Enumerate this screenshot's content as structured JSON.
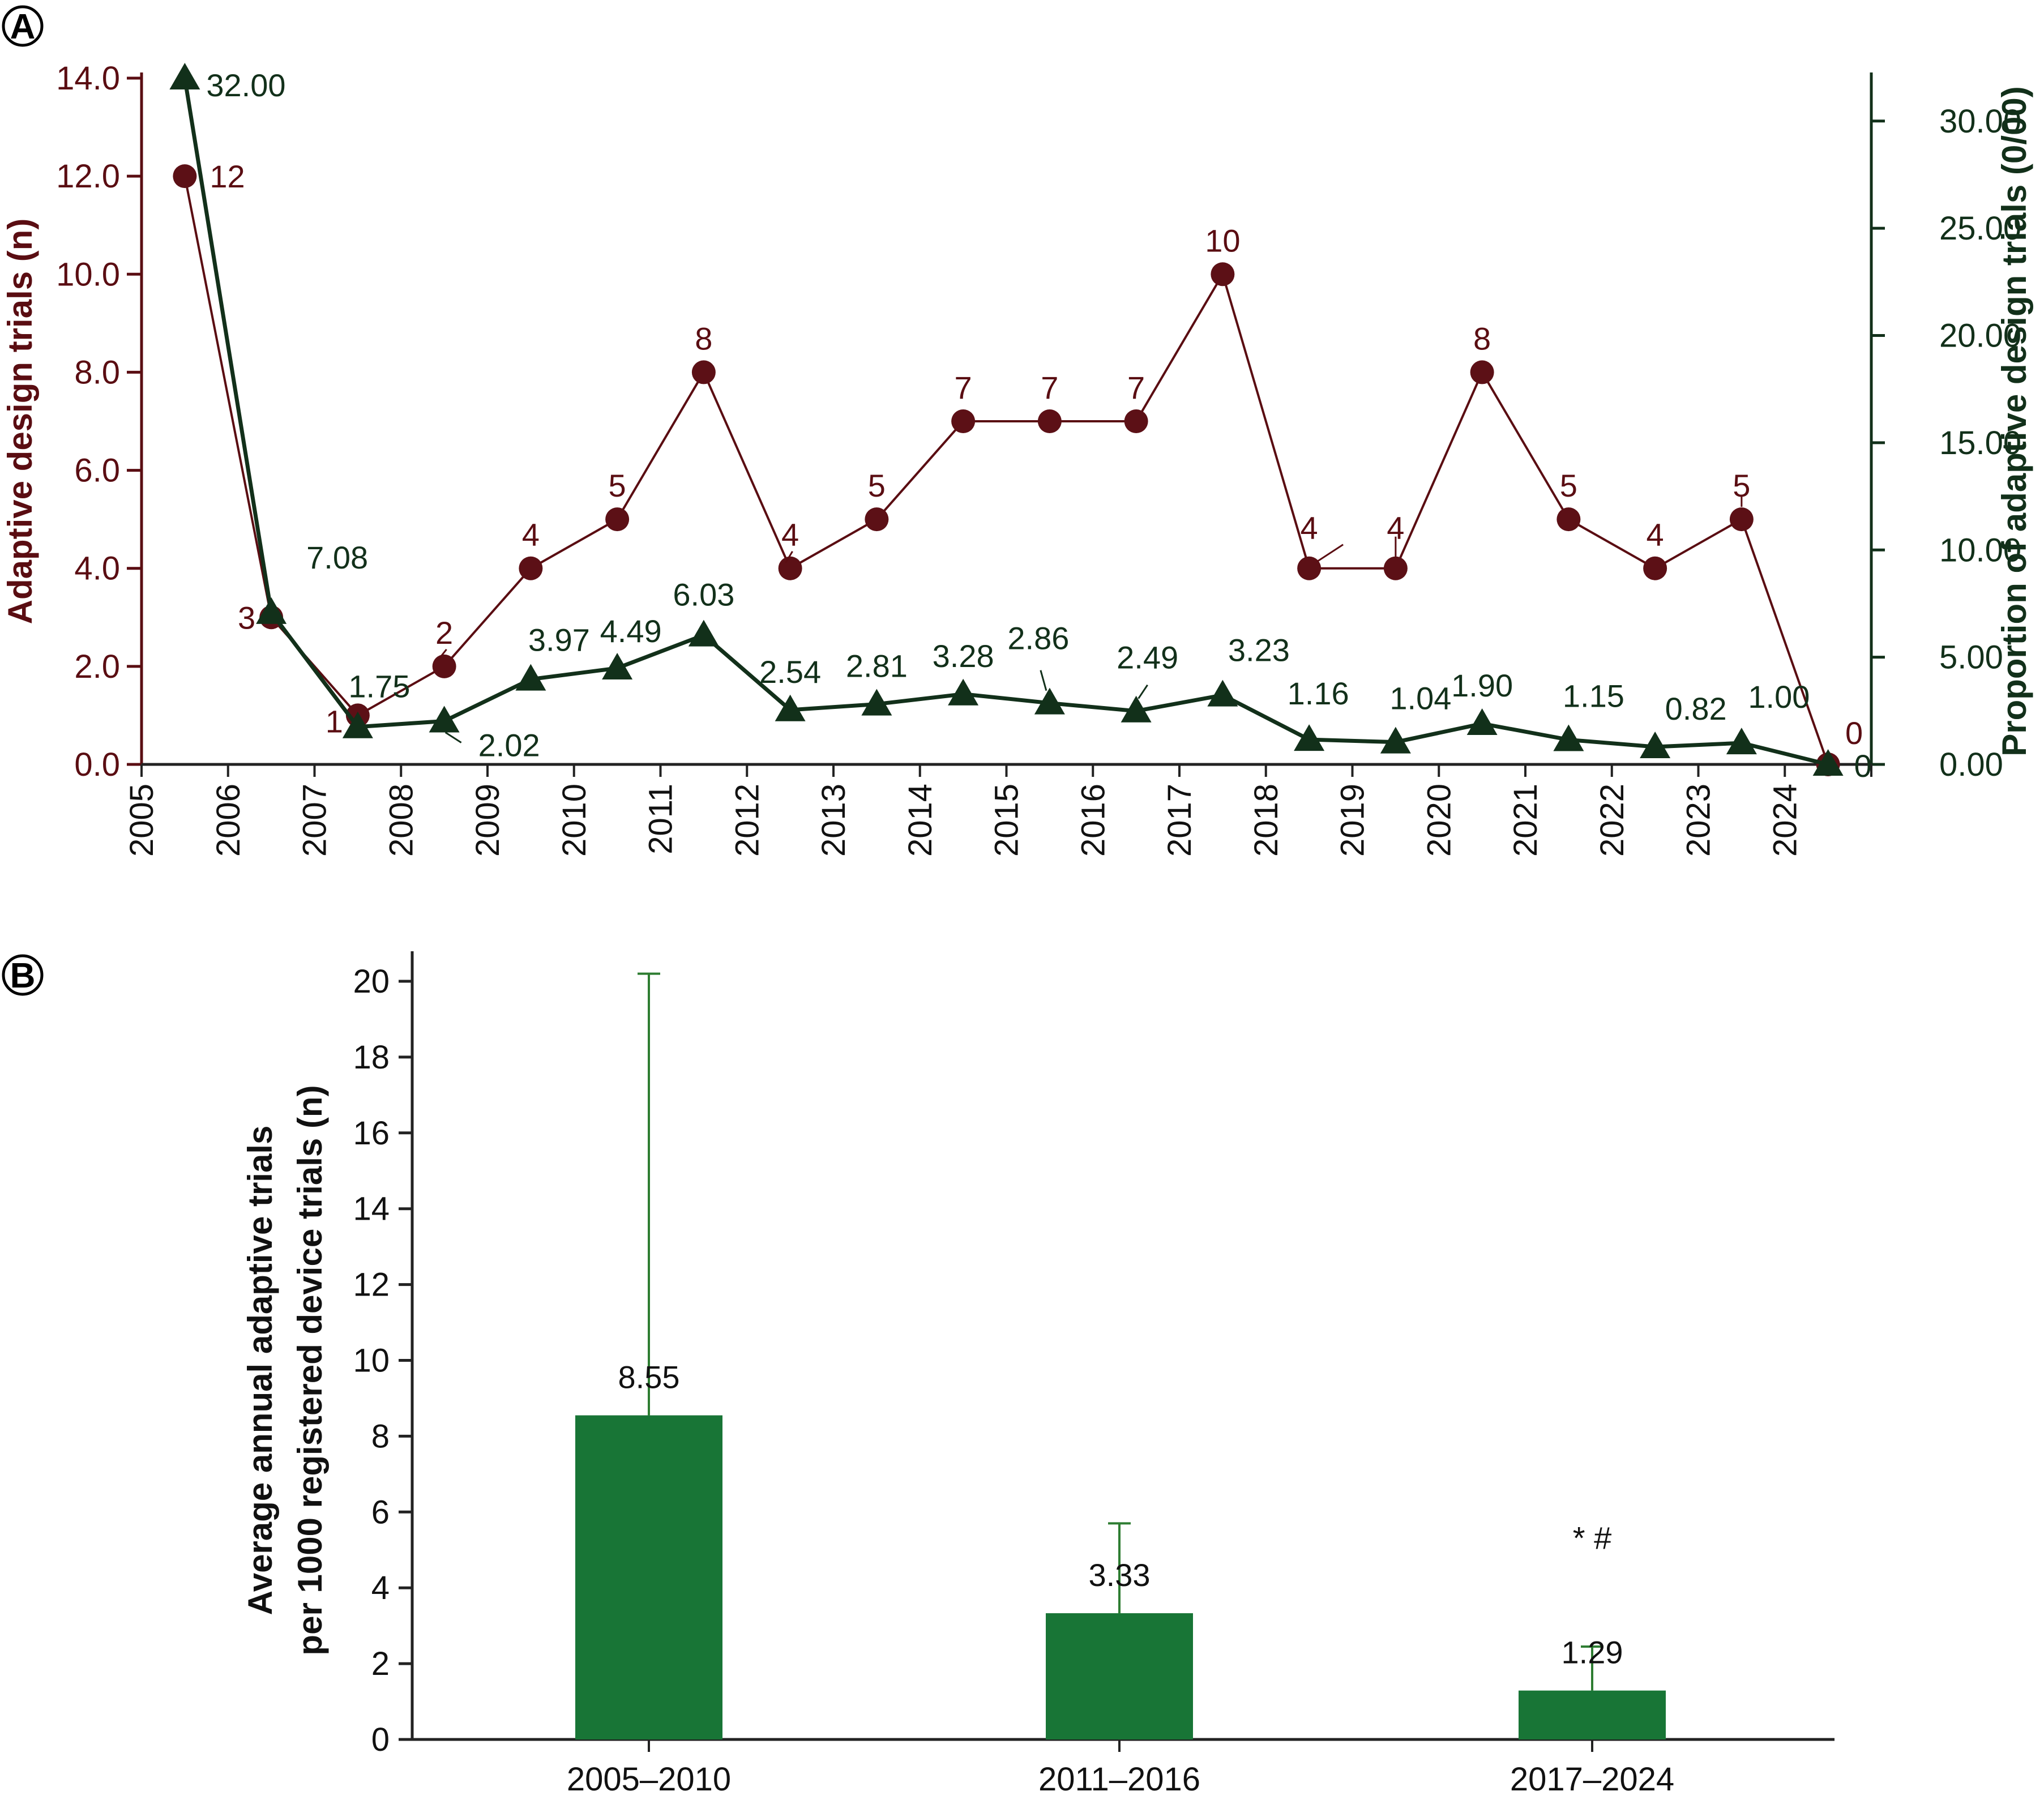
{
  "colors": {
    "count_series": "#5a0d12",
    "count_marker": "#5c1016",
    "proportion_series": "#12301a",
    "bar_fill": "#187536",
    "bar_error": "#2e7d32",
    "axis_black": "#222222"
  },
  "panels": {
    "a": "A",
    "b": "B"
  },
  "chart_data": [
    {
      "panel": "A",
      "type": "line",
      "x": [
        "2005",
        "2006",
        "2007",
        "2008",
        "2009",
        "2010",
        "2011",
        "2012",
        "2013",
        "2014",
        "2015",
        "2016",
        "2017",
        "2018",
        "2019",
        "2020",
        "2021",
        "2022",
        "2023",
        "2024"
      ],
      "series": [
        {
          "name": "Adaptive design trials (n)",
          "axis": "left",
          "marker": "circle",
          "values": [
            12,
            3,
            1,
            2,
            4,
            5,
            8,
            4,
            5,
            7,
            7,
            7,
            10,
            4,
            4,
            8,
            5,
            4,
            5,
            0
          ],
          "labels": [
            "12",
            "3",
            "1",
            "2",
            "4",
            "5",
            "8",
            "4",
            "5",
            "7",
            "7",
            "7",
            "10",
            "4",
            "4",
            "8",
            "5",
            "4",
            "5",
            "0"
          ]
        },
        {
          "name": "Proportion of adaptive design trials (0/00)",
          "axis": "right",
          "marker": "triangle",
          "values": [
            32.0,
            7.08,
            1.75,
            2.02,
            3.97,
            4.49,
            6.03,
            2.54,
            2.81,
            3.28,
            2.86,
            2.49,
            3.23,
            1.16,
            1.04,
            1.9,
            1.15,
            0.82,
            1.0,
            0
          ],
          "labels": [
            "32.00",
            "7.08",
            "1.75",
            "2.02",
            "3.97",
            "4.49",
            "6.03",
            "2.54",
            "2.81",
            "3.28",
            "2.86",
            "2.49",
            "3.23",
            "1.16",
            "1.04",
            "1.90",
            "1.15",
            "0.82",
            "1.00",
            "0"
          ]
        }
      ],
      "ylabel_left": "Adaptive design trials (n)",
      "ylabel_right": "Proportion of adaptive design trials (0/00)",
      "ylim_left": [
        0,
        14
      ],
      "yticks_left": [
        "0.0",
        "2.0",
        "4.0",
        "6.0",
        "8.0",
        "10.0",
        "12.0",
        "14.0"
      ],
      "ylim_right": [
        0,
        32
      ],
      "yticks_right": [
        "0.00",
        "5.00",
        "10.00",
        "15.00",
        "20.00",
        "25.00",
        "30.00"
      ]
    },
    {
      "panel": "B",
      "type": "bar",
      "categories": [
        "2005–2010",
        "2011–2016",
        "2017–2024"
      ],
      "values": [
        8.55,
        3.33,
        1.29
      ],
      "labels": [
        "8.55",
        "3.33",
        "1.29"
      ],
      "error_upper": [
        20.2,
        5.7,
        2.45
      ],
      "annotations": [
        "",
        "",
        "* #"
      ],
      "ylabel_lines": [
        "Average annual adaptive trials",
        "per 1000 registered device trials (n)"
      ],
      "ylim": [
        0,
        20
      ],
      "yticks": [
        "0",
        "2",
        "4",
        "6",
        "8",
        "10",
        "12",
        "14",
        "16",
        "18",
        "20"
      ]
    }
  ]
}
